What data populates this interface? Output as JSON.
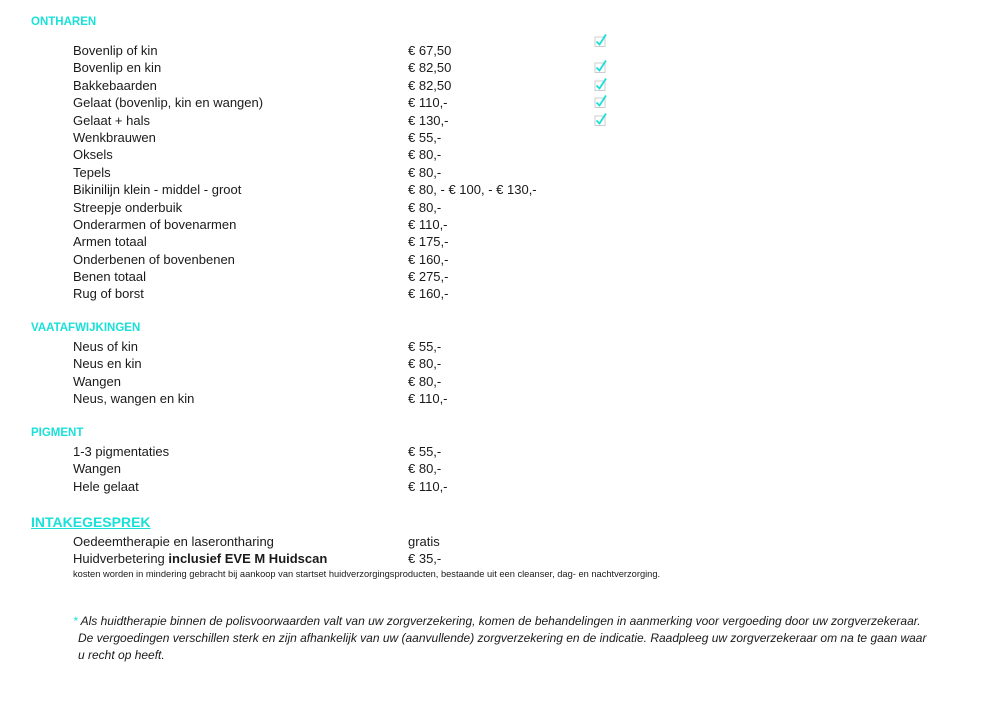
{
  "accent_color": "#19e0d8",
  "sections": [
    {
      "title": "ONTHAREN",
      "items": [
        {
          "name": "Bovenlip of kin",
          "price": "€ 67,50",
          "checked": true
        },
        {
          "name": "Bovenlip en kin",
          "price": "€ 82,50",
          "checked": true
        },
        {
          "name": "Bakkebaarden",
          "price": "€ 82,50",
          "checked": true
        },
        {
          "name": "Gelaat (bovenlip, kin en wangen)",
          "price": "€ 110,-",
          "checked": true
        },
        {
          "name": "Gelaat + hals",
          "price": "€ 130,-",
          "checked": true
        },
        {
          "name": "Wenkbrauwen",
          "price": "€ 55,-"
        },
        {
          "name": "Oksels",
          "price": "€ 80,-"
        },
        {
          "name": "Tepels",
          "price": "€ 80,-"
        },
        {
          "name": "Bikinilijn klein - middel - groot",
          "price": "€ 80, - € 100, - € 130,-"
        },
        {
          "name": "Streepje onderbuik",
          "price": "€ 80,-"
        },
        {
          "name": "Onderarmen of bovenarmen",
          "price": "€ 110,-"
        },
        {
          "name": "Armen totaal",
          "price": "€ 175,-"
        },
        {
          "name": "Onderbenen of bovenbenen",
          "price": "€ 160,-"
        },
        {
          "name": "Benen totaal",
          "price": "€ 275,-"
        },
        {
          "name": "Rug of borst",
          "price": "€ 160,-"
        }
      ]
    },
    {
      "title": "VAATAFWIJKINGEN",
      "items": [
        {
          "name": "Neus of kin",
          "price": "€ 55,-"
        },
        {
          "name": "Neus en kin",
          "price": "€ 80,-"
        },
        {
          "name": "Wangen",
          "price": "€ 80,-"
        },
        {
          "name": "Neus, wangen en kin",
          "price": "€ 110,-"
        }
      ]
    },
    {
      "title": "PIGMENT",
      "items": [
        {
          "name": "1-3 pigmentaties",
          "price": "€ 55,-"
        },
        {
          "name": "Wangen",
          "price": "€ 80,-"
        },
        {
          "name": "Hele gelaat",
          "price": "€ 110,-"
        }
      ]
    },
    {
      "title": "INTAKEGESPREK",
      "items": [
        {
          "name": "Oedeemtherapie en laserontharing",
          "price": "gratis"
        },
        {
          "name": "Huidverbetering ",
          "bold": "inclusief EVE M Huidscan",
          "price": "€ 35,-"
        }
      ]
    }
  ],
  "intake_note": "kosten worden in mindering gebracht bij aankoop van startset huidverzorgingsproducten, bestaande uit een cleanser, dag- en nachtverzorging.",
  "footnote": {
    "asterisk": "*",
    "lines": [
      "Als huidtherapie binnen de polisvoorwaarden valt van uw zorgverzekering, komen de behandelingen in aanmerking voor vergoeding door uw zorgverzekeraar.",
      "De vergoedingen verschillen sterk en zijn afhankelijk van uw (aanvullende) zorgverzekering en de indicatie. Raadpleeg uw zorgverzekeraar om na te gaan waar",
      "u recht op heeft."
    ]
  }
}
